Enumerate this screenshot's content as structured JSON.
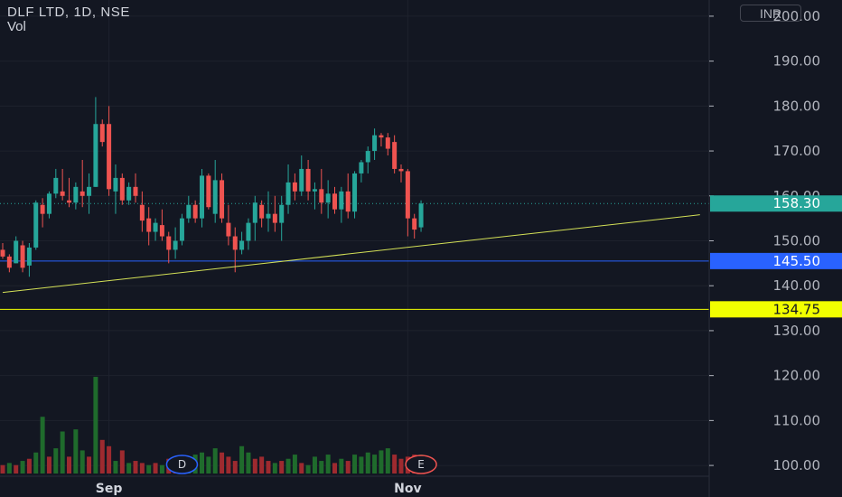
{
  "header": {
    "symbol": "DLF LTD, 1D, NSE",
    "volume_label": "Vol"
  },
  "currency": "INR",
  "colors": {
    "background": "#131722",
    "up": "#26a69a",
    "down": "#ef5350",
    "vol_up": "#1f6b2c",
    "vol_down": "#9e2a2f",
    "support": "#2962ff",
    "trendline": "#d4e157",
    "last_price": "#26a69a",
    "level_yellow": "#f2ff00"
  },
  "chart_data": {
    "type": "candlestick",
    "title": "DLF LTD, 1D, NSE",
    "y_ticks": [
      "100.00",
      "110.00",
      "120.00",
      "130.00",
      "140.00",
      "150.00",
      "160.00",
      "170.00",
      "180.00",
      "190.00",
      "200.00"
    ],
    "x_ticks": [
      {
        "label": "Sep",
        "index": 16
      },
      {
        "label": "Nov",
        "index": 61
      }
    ],
    "ylim": [
      97,
      203
    ],
    "price_tags": [
      {
        "id": "last-price",
        "value": 158.3,
        "label": "158.30",
        "style": "last"
      },
      {
        "id": "support-level",
        "value": 145.5,
        "label": "145.50",
        "style": "support"
      },
      {
        "id": "horizontal-level",
        "value": 134.75,
        "label": "134.75",
        "style": "level"
      }
    ],
    "trendline": {
      "start": {
        "index": 0,
        "value": 138.5
      },
      "end": {
        "index": 105,
        "value": 155.8
      }
    },
    "events": [
      {
        "label": "D",
        "index": 27
      },
      {
        "label": "E",
        "index": 63
      }
    ],
    "candles": [
      [
        148.0,
        149.5,
        146.0,
        146.5
      ],
      [
        146.5,
        147.0,
        143.0,
        144.0
      ],
      [
        145.0,
        151.0,
        145.0,
        150.0
      ],
      [
        149.0,
        150.0,
        143.0,
        144.0
      ],
      [
        144.5,
        149.5,
        142.0,
        148.5
      ],
      [
        148.5,
        159.0,
        148.0,
        158.5
      ],
      [
        158.0,
        159.5,
        153.0,
        156.0
      ],
      [
        156.0,
        161.0,
        155.0,
        160.5
      ],
      [
        160.5,
        166.0,
        159.5,
        164.0
      ],
      [
        161.0,
        166.0,
        159.0,
        160.0
      ],
      [
        159.0,
        164.0,
        157.5,
        158.5
      ],
      [
        158.5,
        163.0,
        157.0,
        162.0
      ],
      [
        161.0,
        168.0,
        157.5,
        160.0
      ],
      [
        160.0,
        165.0,
        156.0,
        162.0
      ],
      [
        162.0,
        182.0,
        162.0,
        176.0
      ],
      [
        176.0,
        177.0,
        171.0,
        172.0
      ],
      [
        176.0,
        180.0,
        160.0,
        161.5
      ],
      [
        161.0,
        167.0,
        156.0,
        164.0
      ],
      [
        164.0,
        165.0,
        158.0,
        159.0
      ],
      [
        159.0,
        163.0,
        158.0,
        162.0
      ],
      [
        162.0,
        165.0,
        158.5,
        160.0
      ],
      [
        158.0,
        161.0,
        152.0,
        154.5
      ],
      [
        155.0,
        157.5,
        149.0,
        152.0
      ],
      [
        152.0,
        155.0,
        150.0,
        154.0
      ],
      [
        153.5,
        157.0,
        150.0,
        151.0
      ],
      [
        151.0,
        152.0,
        145.0,
        148.0
      ],
      [
        148.0,
        153.0,
        146.0,
        150.0
      ],
      [
        150.0,
        156.0,
        149.0,
        155.0
      ],
      [
        155.0,
        160.0,
        154.0,
        158.0
      ],
      [
        158.0,
        159.0,
        154.0,
        155.0
      ],
      [
        155.0,
        166.0,
        153.0,
        164.5
      ],
      [
        164.5,
        165.0,
        157.0,
        157.5
      ],
      [
        156.0,
        168.0,
        154.0,
        163.5
      ],
      [
        163.5,
        165.0,
        154.0,
        155.0
      ],
      [
        154.0,
        158.0,
        149.0,
        151.0
      ],
      [
        151.0,
        153.0,
        143.0,
        148.0
      ],
      [
        148.0,
        152.0,
        147.0,
        150.0
      ],
      [
        150.0,
        155.0,
        148.0,
        154.0
      ],
      [
        154.0,
        160.0,
        150.0,
        158.5
      ],
      [
        158.0,
        159.0,
        153.0,
        155.0
      ],
      [
        155.0,
        161.0,
        152.0,
        156.0
      ],
      [
        156.0,
        160.0,
        152.0,
        154.0
      ],
      [
        154.0,
        160.0,
        150.0,
        158.0
      ],
      [
        158.0,
        167.0,
        156.0,
        163.0
      ],
      [
        163.0,
        165.0,
        159.0,
        161.0
      ],
      [
        161.0,
        169.0,
        160.0,
        166.0
      ],
      [
        166.0,
        168.0,
        159.0,
        161.0
      ],
      [
        161.0,
        163.0,
        157.0,
        161.5
      ],
      [
        161.5,
        166.0,
        156.0,
        158.5
      ],
      [
        158.5,
        163.5,
        155.0,
        160.5
      ],
      [
        160.5,
        162.0,
        156.0,
        157.0
      ],
      [
        157.0,
        162.0,
        154.0,
        161.0
      ],
      [
        161.0,
        165.0,
        155.0,
        156.5
      ],
      [
        156.5,
        165.5,
        155.0,
        165.0
      ],
      [
        165.0,
        168.0,
        163.0,
        167.5
      ],
      [
        167.5,
        171.0,
        165.0,
        170.0
      ],
      [
        170.0,
        175.0,
        168.0,
        173.5
      ],
      [
        173.5,
        174.0,
        171.0,
        173.0
      ],
      [
        173.0,
        174.0,
        169.0,
        170.5
      ],
      [
        172.0,
        173.5,
        165.0,
        166.0
      ],
      [
        166.0,
        167.0,
        163.0,
        165.5
      ],
      [
        165.5,
        166.0,
        151.0,
        155.0
      ],
      [
        155.0,
        156.0,
        150.5,
        152.5
      ],
      [
        153.0,
        159.0,
        152.0,
        158.3
      ]
    ],
    "volume": [
      [
        2.0,
        "down"
      ],
      [
        2.5,
        "up"
      ],
      [
        2.0,
        "down"
      ],
      [
        3.0,
        "up"
      ],
      [
        3.5,
        "down"
      ],
      [
        5.0,
        "up"
      ],
      [
        13.5,
        "up"
      ],
      [
        4.0,
        "down"
      ],
      [
        6.0,
        "up"
      ],
      [
        10.0,
        "up"
      ],
      [
        4.0,
        "down"
      ],
      [
        10.5,
        "up"
      ],
      [
        5.5,
        "up"
      ],
      [
        4.0,
        "down"
      ],
      [
        23.0,
        "up"
      ],
      [
        8.0,
        "down"
      ],
      [
        6.5,
        "down"
      ],
      [
        3.0,
        "up"
      ],
      [
        5.5,
        "down"
      ],
      [
        2.5,
        "up"
      ],
      [
        3.0,
        "down"
      ],
      [
        2.5,
        "down"
      ],
      [
        2.0,
        "up"
      ],
      [
        2.5,
        "down"
      ],
      [
        2.0,
        "up"
      ],
      [
        3.5,
        "down"
      ],
      [
        3.0,
        "down"
      ],
      [
        3.5,
        "up"
      ],
      [
        4.0,
        "up"
      ],
      [
        4.5,
        "up"
      ],
      [
        5.0,
        "up"
      ],
      [
        4.0,
        "up"
      ],
      [
        6.0,
        "up"
      ],
      [
        5.0,
        "down"
      ],
      [
        4.0,
        "down"
      ],
      [
        3.0,
        "down"
      ],
      [
        6.5,
        "up"
      ],
      [
        5.0,
        "up"
      ],
      [
        3.5,
        "down"
      ],
      [
        4.0,
        "down"
      ],
      [
        3.0,
        "down"
      ],
      [
        2.5,
        "up"
      ],
      [
        3.0,
        "down"
      ],
      [
        3.5,
        "up"
      ],
      [
        4.5,
        "up"
      ],
      [
        2.5,
        "down"
      ],
      [
        2.0,
        "up"
      ],
      [
        4.0,
        "up"
      ],
      [
        3.0,
        "up"
      ],
      [
        4.5,
        "up"
      ],
      [
        2.5,
        "down"
      ],
      [
        3.5,
        "up"
      ],
      [
        3.0,
        "down"
      ],
      [
        4.5,
        "up"
      ],
      [
        4.0,
        "up"
      ],
      [
        5.0,
        "up"
      ],
      [
        4.5,
        "up"
      ],
      [
        5.5,
        "up"
      ],
      [
        6.0,
        "up"
      ],
      [
        4.5,
        "down"
      ],
      [
        3.5,
        "down"
      ],
      [
        4.0,
        "down"
      ],
      [
        4.5,
        "down"
      ],
      [
        4.5,
        "up"
      ]
    ]
  }
}
